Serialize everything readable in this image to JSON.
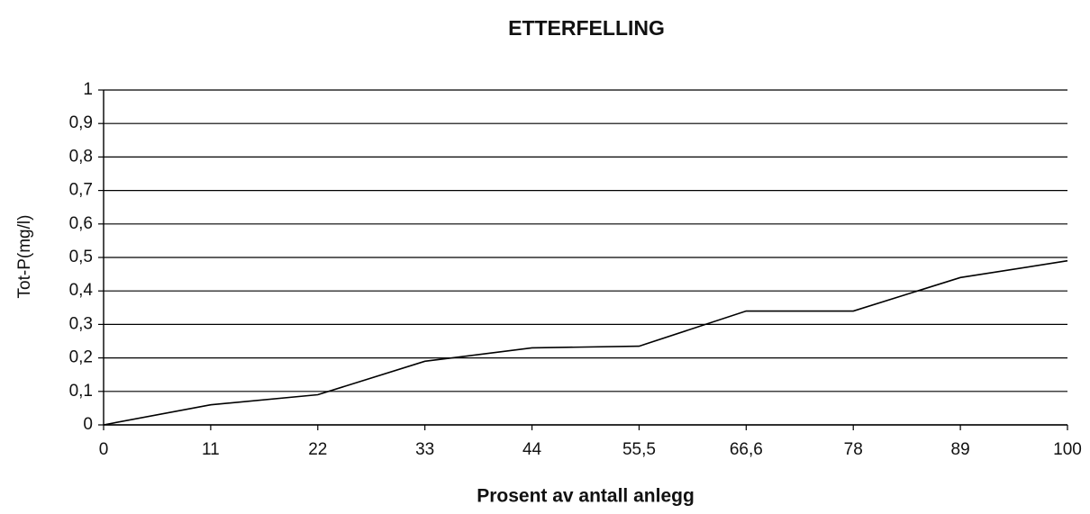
{
  "chart_data": {
    "type": "line",
    "title": "ETTERFELLING",
    "x_label": "Prosent av antall anlegg",
    "y_label": "Tot-P(mg/l)",
    "categories": [
      "0",
      "11",
      "22",
      "33",
      "44",
      "55,5",
      "66,6",
      "78",
      "89",
      "100"
    ],
    "values": [
      0,
      0.06,
      0.09,
      0.19,
      0.23,
      0.235,
      0.34,
      0.34,
      0.44,
      0.49
    ],
    "color": "#000000",
    "ylim": [
      0,
      1
    ],
    "yticks": [
      0,
      {
        "value": 0.1,
        "label": "0,1"
      },
      {
        "value": 0.2,
        "label": "0,2"
      },
      {
        "value": 0.3,
        "label": "0,3"
      },
      {
        "value": 0.4,
        "label": "0,4"
      },
      {
        "value": 0.5,
        "label": "0,5"
      },
      {
        "value": 0.6,
        "label": "0,6"
      },
      {
        "value": 0.7,
        "label": "0,7"
      },
      {
        "value": 0.8,
        "label": "0,8"
      },
      {
        "value": 0.9,
        "label": "0,9"
      },
      1
    ],
    "grid": true
  }
}
